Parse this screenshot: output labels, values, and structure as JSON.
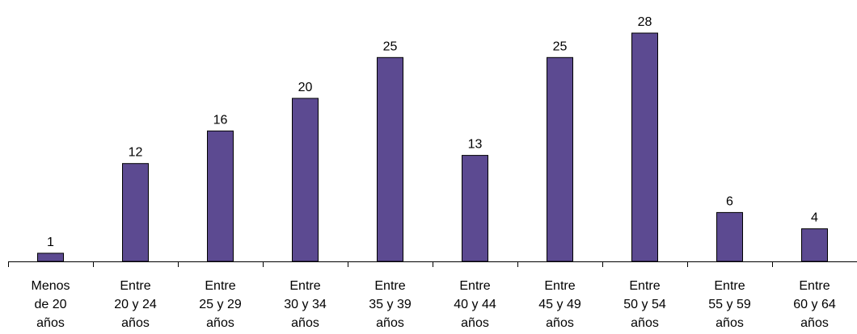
{
  "chart_data": {
    "type": "bar",
    "categories": [
      [
        "Menos",
        "de 20",
        "años"
      ],
      [
        "Entre",
        "20 y 24",
        "años"
      ],
      [
        "Entre",
        "25 y 29",
        "años"
      ],
      [
        "Entre",
        "30 y 34",
        "años"
      ],
      [
        "Entre",
        "35 y 39",
        "años"
      ],
      [
        "Entre",
        "40 y 44",
        "años"
      ],
      [
        "Entre",
        "45 y 49",
        "años"
      ],
      [
        "Entre",
        "50 y 54",
        "años"
      ],
      [
        "Entre",
        "55 y 59",
        "años"
      ],
      [
        "Entre",
        "60 y 64",
        "años"
      ]
    ],
    "values": [
      1,
      12,
      16,
      20,
      25,
      13,
      25,
      28,
      6,
      4
    ],
    "ylim": [
      0,
      28
    ],
    "bar_color": "#5c4a91",
    "bar_outline_color": "#000000",
    "grid": false,
    "legend": "none"
  }
}
